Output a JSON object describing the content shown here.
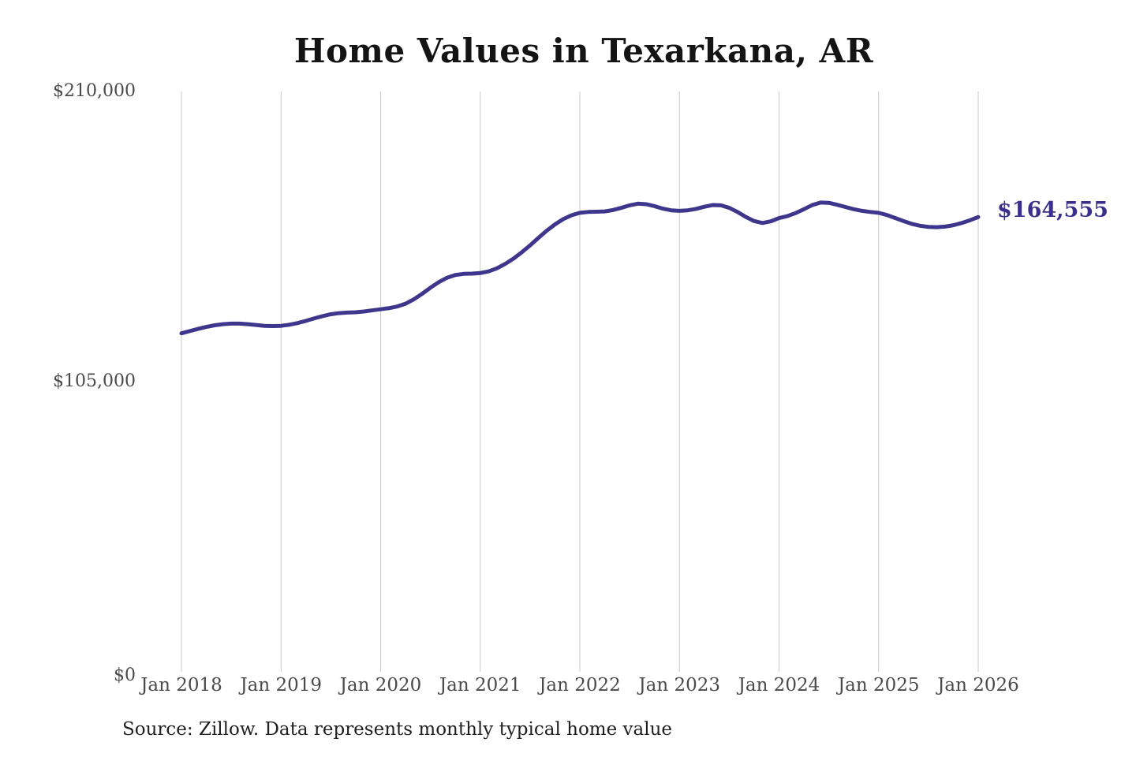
{
  "title": "Home Values in Texarkana, AR",
  "source_note": "Source: Zillow. Data represents monthly typical home value",
  "annotation": {
    "label": "$164,555"
  },
  "y_axis": {
    "ticks": [
      {
        "label": "$210,000",
        "value": 210000
      },
      {
        "label": "$105,000",
        "value": 105000
      },
      {
        "label": "$0",
        "value": 0
      }
    ]
  },
  "x_axis": {
    "ticks": [
      "Jan 2018",
      "Jan 2019",
      "Jan 2020",
      "Jan 2021",
      "Jan 2022",
      "Jan 2023",
      "Jan 2024",
      "Jan 2025",
      "Jan 2026"
    ]
  },
  "colors": {
    "line": "#3e368c",
    "annotation": "#38308c",
    "gridline": "#c9c9c9",
    "title": "#141414",
    "axis_label": "#4a4a4a",
    "source": "#1f1f1f",
    "background": "#ffffff"
  },
  "chart_data": {
    "type": "line",
    "title": "Home Values in Texarkana, AR",
    "xlabel": "",
    "ylabel": "",
    "unit": "USD",
    "ylim": [
      0,
      210000
    ],
    "y_tick_values": [
      0,
      105000,
      210000
    ],
    "x_tick_labels": [
      "Jan 2018",
      "Jan 2019",
      "Jan 2020",
      "Jan 2021",
      "Jan 2022",
      "Jan 2023",
      "Jan 2024",
      "Jan 2025",
      "Jan 2026"
    ],
    "frequency": "monthly",
    "x_range": [
      "Jan 2018",
      "Jan 2026"
    ],
    "grid": "vertical-only",
    "legend": "none",
    "series": [
      {
        "name": "Typical home value",
        "start": "Jan 2018",
        "end": "Jan 2026",
        "end_value": 164555,
        "end_label": "$164,555",
        "values": [
          122500,
          123300,
          124100,
          124800,
          125400,
          125800,
          126000,
          126000,
          125800,
          125500,
          125200,
          125100,
          125200,
          125600,
          126200,
          127000,
          127900,
          128700,
          129400,
          129800,
          130000,
          130100,
          130400,
          130800,
          131200,
          131600,
          132200,
          133200,
          134800,
          136800,
          139000,
          141000,
          142600,
          143600,
          144000,
          144100,
          144300,
          144900,
          146000,
          147600,
          149500,
          151800,
          154300,
          157000,
          159600,
          161900,
          163800,
          165200,
          166100,
          166400,
          166500,
          166600,
          167100,
          167900,
          168800,
          169400,
          169200,
          168500,
          167600,
          167000,
          166800,
          167000,
          167500,
          168300,
          168900,
          168800,
          167900,
          166400,
          164600,
          163100,
          162400,
          163000,
          164200,
          164900,
          166000,
          167400,
          168900,
          169800,
          169700,
          169000,
          168200,
          167400,
          166800,
          166400,
          166100,
          165300,
          164200,
          163100,
          162100,
          161400,
          161000,
          160900,
          161100,
          161600,
          162400,
          163400,
          164555
        ]
      }
    ]
  }
}
